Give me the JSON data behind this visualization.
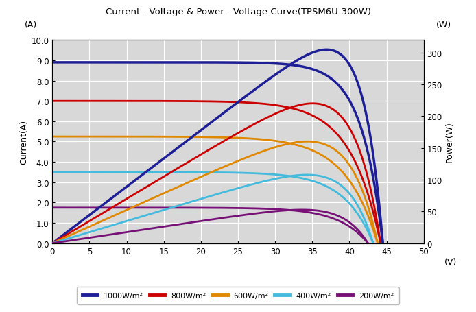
{
  "title": "Current - Voltage & Power - Voltage Curve(TPSM6U-300W)",
  "ylabel_left": "Current(A)",
  "ylabel_right": "Power(W)",
  "label_left_unit": "(A)",
  "label_right_unit": "(W)",
  "xlim": [
    0,
    50
  ],
  "ylim_left": [
    0,
    10.0
  ],
  "ylim_right": [
    0,
    320
  ],
  "xticks": [
    0,
    5,
    10,
    15,
    20,
    25,
    30,
    35,
    40,
    45,
    50
  ],
  "yticks_left": [
    0.0,
    1.0,
    2.0,
    3.0,
    4.0,
    5.0,
    6.0,
    7.0,
    8.0,
    9.0,
    10.0
  ],
  "yticks_right": [
    0,
    50,
    100,
    150,
    200,
    250,
    300
  ],
  "legend_labels": [
    "1000W/m²",
    "800W/m²",
    "600W/m²",
    "400W/m²",
    "200W/m²"
  ],
  "iv_colors": [
    "#1e1e96",
    "#cc0000",
    "#e08800",
    "#44bbdd",
    "#771177"
  ],
  "iv_isc": [
    8.9,
    7.0,
    5.25,
    3.5,
    1.75
  ],
  "iv_voc": [
    44.5,
    44.2,
    43.8,
    43.2,
    42.5
  ],
  "iv_vmp": [
    35.0,
    35.0,
    35.0,
    35.0,
    35.0
  ],
  "iv_imp": [
    8.57,
    6.29,
    4.57,
    3.07,
    1.49
  ],
  "bg_color": "#d8d8d8",
  "plot_bg": "#d8d8d8",
  "grid_color": "#ffffff",
  "lw_main": 2.0
}
